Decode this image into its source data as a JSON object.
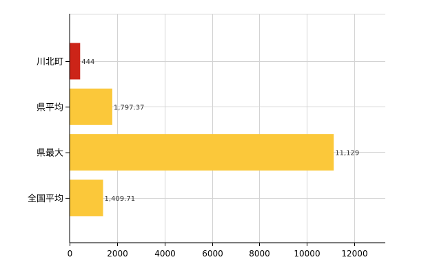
{
  "chart_data": {
    "type": "bar",
    "orientation": "horizontal",
    "categories": [
      "川北町",
      "県平均",
      "県最大",
      "全国平均"
    ],
    "values": [
      444,
      1797.37,
      11129,
      1409.71
    ],
    "data_labels": [
      "444",
      "1,797.37",
      "11,129",
      "1,409.71"
    ],
    "bar_colors": [
      "#cc2418",
      "#fbc83a",
      "#fbc83a",
      "#fbc83a"
    ],
    "xlim": [
      0,
      13300
    ],
    "xticks": [
      0,
      2000,
      4000,
      6000,
      8000,
      10000,
      12000
    ],
    "xtick_labels": [
      "0",
      "2000",
      "4000",
      "6000",
      "8000",
      "10000",
      "12000"
    ],
    "grid": true,
    "legend": "none"
  }
}
